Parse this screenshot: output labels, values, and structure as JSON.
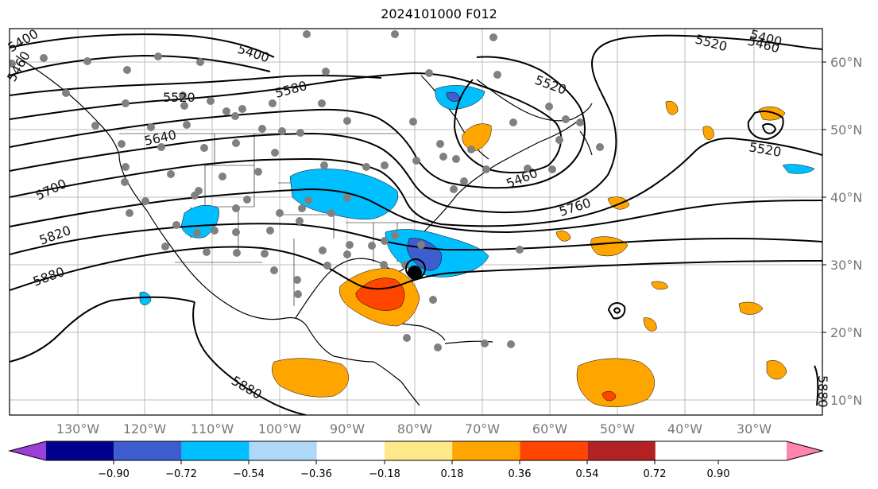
{
  "header": {
    "title": "2024101000 F012"
  },
  "map": {
    "longitude_labels": [
      "130°W",
      "120°W",
      "110°W",
      "100°W",
      "90°W",
      "80°W",
      "70°W",
      "60°W",
      "50°W",
      "40°W",
      "30°W"
    ],
    "latitude_labels": [
      "60°N",
      "50°N",
      "40°N",
      "30°N",
      "20°N",
      "10°N"
    ],
    "contour_labels": [
      "5400",
      "5400",
      "5460",
      "5400",
      "5520",
      "5520",
      "5460",
      "5580",
      "5520",
      "5640",
      "5460",
      "5700",
      "5760",
      "5820",
      "5880",
      "5880",
      "5520",
      "5880"
    ],
    "storm_marker": "black-circle"
  },
  "colorbar": {
    "tick_labels": [
      "−0.90",
      "−0.72",
      "−0.54",
      "−0.36",
      "−0.18",
      "0.18",
      "0.36",
      "0.54",
      "0.72",
      "0.90"
    ],
    "colors": [
      "#9b3fd6",
      "#00008b",
      "#3e5ecf",
      "#00bfff",
      "#add8f8",
      "#ffffff",
      "#ffe889",
      "#ffa500",
      "#ff4500",
      "#b22222",
      "#ff85b0"
    ]
  },
  "theme": {
    "land_fill": "#ffffff",
    "grid_color": "#bdbdbd",
    "label_color": "#777777",
    "station_dot_color": "#808080"
  }
}
